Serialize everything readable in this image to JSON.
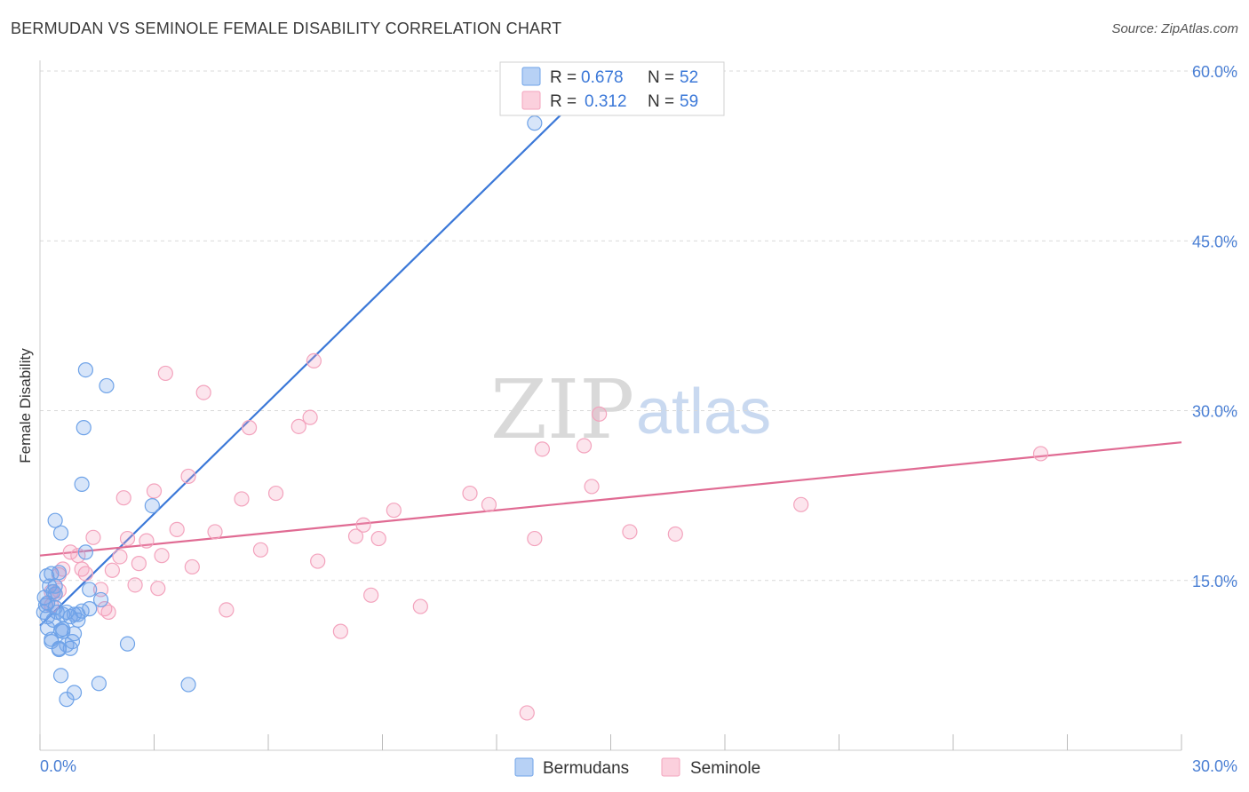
{
  "title": "BERMUDAN VS SEMINOLE FEMALE DISABILITY CORRELATION CHART",
  "source": "Source: ZipAtlas.com",
  "watermark": {
    "zip": "ZIP",
    "atlas": "atlas"
  },
  "colors": {
    "blue": "#6fa3e8",
    "blue_line": "#3b78d8",
    "pink": "#f3a3bd",
    "pink_line": "#e06b93",
    "axis_label": "#4a7fd4",
    "grid": "#d9d9d9"
  },
  "legend": {
    "rows": [
      {
        "r_label": "R = ",
        "r_value": "0.678",
        "n_label": "N = ",
        "n_value": "52"
      },
      {
        "r_label": "R = ",
        "r_value": "0.312",
        "n_label": "N = ",
        "n_value": "59"
      }
    ]
  },
  "chart_data": {
    "type": "scatter",
    "title": "BERMUDAN VS SEMINOLE FEMALE DISABILITY CORRELATION CHART",
    "xlabel": "",
    "ylabel": "Female Disability",
    "xlim": [
      0,
      30
    ],
    "ylim": [
      0,
      60
    ],
    "x_tick_labels": [
      "0.0%",
      "30.0%"
    ],
    "y_ticks": [
      15,
      30,
      45,
      60
    ],
    "y_tick_labels": [
      "15.0%",
      "30.0%",
      "45.0%",
      "60.0%"
    ],
    "grid": true,
    "legend_position": "top-center",
    "series": [
      {
        "name": "Bermudans",
        "r": 0.678,
        "n": 52,
        "trend": {
          "x": [
            0.0,
            14.8
          ],
          "y": [
            11.0,
            59.8
          ]
        },
        "points": [
          {
            "x": 0.1,
            "y": 12.2
          },
          {
            "x": 0.15,
            "y": 12.8
          },
          {
            "x": 0.2,
            "y": 11.8
          },
          {
            "x": 0.12,
            "y": 13.5
          },
          {
            "x": 0.25,
            "y": 14.5
          },
          {
            "x": 0.3,
            "y": 15.6
          },
          {
            "x": 0.18,
            "y": 15.4
          },
          {
            "x": 0.35,
            "y": 14.0
          },
          {
            "x": 0.4,
            "y": 12.6
          },
          {
            "x": 0.45,
            "y": 12.2
          },
          {
            "x": 0.2,
            "y": 10.8
          },
          {
            "x": 0.3,
            "y": 9.6
          },
          {
            "x": 0.5,
            "y": 9.0
          },
          {
            "x": 0.6,
            "y": 10.5
          },
          {
            "x": 0.7,
            "y": 9.3
          },
          {
            "x": 0.8,
            "y": 9.0
          },
          {
            "x": 0.85,
            "y": 9.6
          },
          {
            "x": 0.9,
            "y": 10.3
          },
          {
            "x": 1.0,
            "y": 11.5
          },
          {
            "x": 1.1,
            "y": 12.3
          },
          {
            "x": 1.0,
            "y": 12.0
          },
          {
            "x": 1.3,
            "y": 12.5
          },
          {
            "x": 1.3,
            "y": 14.2
          },
          {
            "x": 1.2,
            "y": 17.5
          },
          {
            "x": 0.6,
            "y": 12.0
          },
          {
            "x": 0.7,
            "y": 12.2
          },
          {
            "x": 0.55,
            "y": 10.6
          },
          {
            "x": 0.4,
            "y": 13.8
          },
          {
            "x": 0.4,
            "y": 14.5
          },
          {
            "x": 0.5,
            "y": 15.7
          },
          {
            "x": 0.4,
            "y": 20.3
          },
          {
            "x": 0.55,
            "y": 19.2
          },
          {
            "x": 1.1,
            "y": 23.5
          },
          {
            "x": 1.15,
            "y": 28.5
          },
          {
            "x": 1.2,
            "y": 33.6
          },
          {
            "x": 1.75,
            "y": 32.2
          },
          {
            "x": 2.95,
            "y": 21.6
          },
          {
            "x": 2.3,
            "y": 9.4
          },
          {
            "x": 0.55,
            "y": 6.6
          },
          {
            "x": 0.7,
            "y": 4.5
          },
          {
            "x": 0.9,
            "y": 5.1
          },
          {
            "x": 1.55,
            "y": 5.9
          },
          {
            "x": 3.9,
            "y": 5.8
          },
          {
            "x": 1.6,
            "y": 13.3
          },
          {
            "x": 0.6,
            "y": 10.7
          },
          {
            "x": 0.8,
            "y": 11.8
          },
          {
            "x": 0.3,
            "y": 9.8
          },
          {
            "x": 0.35,
            "y": 11.5
          },
          {
            "x": 0.9,
            "y": 12.0
          },
          {
            "x": 0.5,
            "y": 8.9
          },
          {
            "x": 13.0,
            "y": 55.4
          },
          {
            "x": 0.2,
            "y": 13.0
          }
        ]
      },
      {
        "name": "Seminole",
        "r": 0.312,
        "n": 59,
        "trend": {
          "x": [
            0.0,
            30.0
          ],
          "y": [
            17.2,
            27.2
          ]
        },
        "points": [
          {
            "x": 0.2,
            "y": 13.0
          },
          {
            "x": 0.3,
            "y": 14.0
          },
          {
            "x": 0.4,
            "y": 13.8
          },
          {
            "x": 0.5,
            "y": 15.5
          },
          {
            "x": 0.6,
            "y": 16.0
          },
          {
            "x": 0.8,
            "y": 17.5
          },
          {
            "x": 1.0,
            "y": 17.2
          },
          {
            "x": 1.1,
            "y": 16.0
          },
          {
            "x": 1.2,
            "y": 15.6
          },
          {
            "x": 1.4,
            "y": 18.8
          },
          {
            "x": 1.6,
            "y": 14.2
          },
          {
            "x": 1.7,
            "y": 12.5
          },
          {
            "x": 1.8,
            "y": 12.2
          },
          {
            "x": 1.9,
            "y": 15.9
          },
          {
            "x": 2.1,
            "y": 17.1
          },
          {
            "x": 2.3,
            "y": 18.7
          },
          {
            "x": 2.5,
            "y": 14.6
          },
          {
            "x": 2.6,
            "y": 16.5
          },
          {
            "x": 2.8,
            "y": 18.5
          },
          {
            "x": 2.2,
            "y": 22.3
          },
          {
            "x": 3.0,
            "y": 22.9
          },
          {
            "x": 3.1,
            "y": 14.3
          },
          {
            "x": 3.2,
            "y": 17.2
          },
          {
            "x": 3.3,
            "y": 33.3
          },
          {
            "x": 3.6,
            "y": 19.5
          },
          {
            "x": 3.9,
            "y": 24.2
          },
          {
            "x": 4.0,
            "y": 16.2
          },
          {
            "x": 4.3,
            "y": 31.6
          },
          {
            "x": 4.6,
            "y": 19.3
          },
          {
            "x": 4.9,
            "y": 12.4
          },
          {
            "x": 5.3,
            "y": 22.2
          },
          {
            "x": 5.5,
            "y": 28.5
          },
          {
            "x": 5.8,
            "y": 17.7
          },
          {
            "x": 6.2,
            "y": 22.7
          },
          {
            "x": 6.8,
            "y": 28.6
          },
          {
            "x": 7.1,
            "y": 29.4
          },
          {
            "x": 7.2,
            "y": 34.4
          },
          {
            "x": 7.3,
            "y": 16.7
          },
          {
            "x": 7.9,
            "y": 10.5
          },
          {
            "x": 8.3,
            "y": 18.9
          },
          {
            "x": 8.5,
            "y": 19.9
          },
          {
            "x": 8.7,
            "y": 13.7
          },
          {
            "x": 8.9,
            "y": 18.7
          },
          {
            "x": 9.3,
            "y": 21.2
          },
          {
            "x": 10.0,
            "y": 12.7
          },
          {
            "x": 11.3,
            "y": 22.7
          },
          {
            "x": 11.8,
            "y": 21.7
          },
          {
            "x": 13.0,
            "y": 18.7
          },
          {
            "x": 13.2,
            "y": 26.6
          },
          {
            "x": 14.3,
            "y": 26.9
          },
          {
            "x": 14.5,
            "y": 23.3
          },
          {
            "x": 14.7,
            "y": 29.7
          },
          {
            "x": 15.5,
            "y": 19.3
          },
          {
            "x": 16.7,
            "y": 19.1
          },
          {
            "x": 20.0,
            "y": 21.7
          },
          {
            "x": 26.3,
            "y": 26.2
          },
          {
            "x": 12.8,
            "y": 3.3
          },
          {
            "x": 0.3,
            "y": 12.8
          },
          {
            "x": 0.5,
            "y": 14.1
          }
        ]
      }
    ]
  }
}
